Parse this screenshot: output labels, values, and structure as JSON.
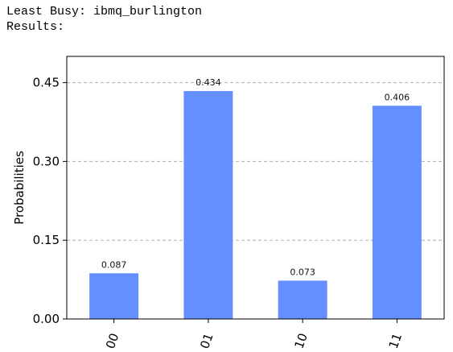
{
  "console": {
    "line1": "Least Busy: ibmq_burlington",
    "line2": "Results:"
  },
  "chart_data": {
    "type": "bar",
    "categories": [
      "00",
      "01",
      "10",
      "11"
    ],
    "values": [
      0.087,
      0.434,
      0.073,
      0.406
    ],
    "data_labels": [
      "0.087",
      "0.434",
      "0.073",
      "0.406"
    ],
    "ylabel": "Probabilities",
    "xlabel": "",
    "ylim": [
      0,
      0.5
    ],
    "yticks": [
      0.0,
      0.15,
      0.3,
      0.45
    ],
    "ytick_labels": [
      "0.00",
      "0.15",
      "0.30",
      "0.45"
    ],
    "grid": "horizontal dashed",
    "bar_color": "#648fff",
    "x_tick_rotation": "70deg"
  }
}
